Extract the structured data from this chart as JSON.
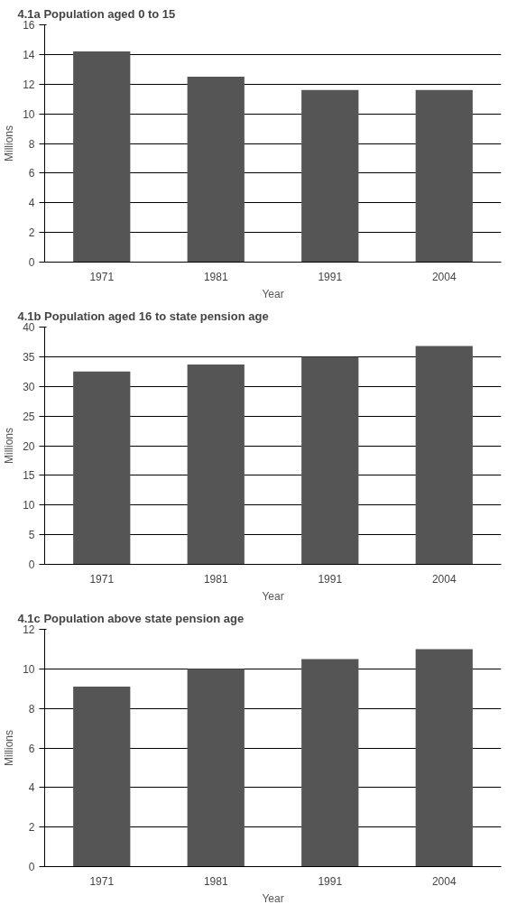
{
  "chart_data": [
    {
      "type": "bar",
      "title": "4.1a Population aged 0 to 15",
      "xlabel": "Year",
      "ylabel": "Millions",
      "categories": [
        "1971",
        "1981",
        "1991",
        "2004"
      ],
      "values": [
        14.2,
        12.5,
        11.6,
        11.6
      ],
      "color": "#555555",
      "ylim": [
        0,
        16
      ],
      "yticks": [
        0,
        2,
        4,
        6,
        8,
        10,
        12,
        14,
        16
      ],
      "grid": "y"
    },
    {
      "type": "bar",
      "title": "4.1b Population aged 16 to state pension age",
      "xlabel": "Year",
      "ylabel": "Millions",
      "categories": [
        "1971",
        "1981",
        "1991",
        "2004"
      ],
      "values": [
        32.5,
        33.7,
        35.0,
        36.8
      ],
      "color": "#555555",
      "ylim": [
        0,
        40
      ],
      "yticks": [
        0,
        5,
        10,
        15,
        20,
        25,
        30,
        35,
        40
      ],
      "grid": "y"
    },
    {
      "type": "bar",
      "title": "4.1c Population above state pension age",
      "xlabel": "Year",
      "ylabel": "Millions",
      "categories": [
        "1971",
        "1981",
        "1991",
        "2004"
      ],
      "values": [
        9.1,
        10.0,
        10.5,
        11.0
      ],
      "color": "#555555",
      "ylim": [
        0,
        12
      ],
      "yticks": [
        0,
        2,
        4,
        6,
        8,
        10,
        12
      ],
      "grid": "y"
    }
  ]
}
